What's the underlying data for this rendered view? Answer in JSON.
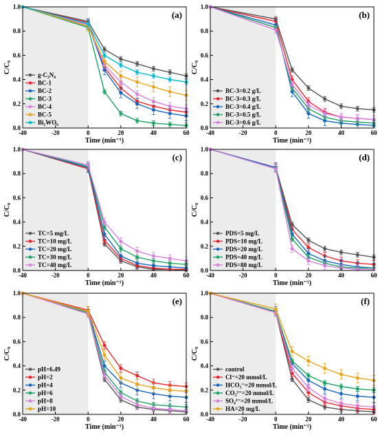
{
  "chart_data": [
    {
      "type": "line",
      "panel": "(a)",
      "xlabel": "Time (min⁻¹)",
      "ylabel": "C/C₀",
      "xlim": [
        -40,
        60
      ],
      "ylim": [
        0,
        1.0
      ],
      "xticks": [
        -40,
        -20,
        0,
        20,
        40,
        60
      ],
      "yticks": [
        0.0,
        0.2,
        0.4,
        0.6,
        0.8,
        1.0
      ],
      "dark_region": [
        -40,
        0
      ],
      "legend_position": "left",
      "x": [
        -40,
        0,
        10,
        20,
        30,
        40,
        50,
        60
      ],
      "series": [
        {
          "name": "g-C₃N₄",
          "color": "#555555",
          "marker": "circle",
          "values": [
            1.0,
            0.88,
            0.65,
            0.57,
            0.53,
            0.49,
            0.46,
            0.43
          ]
        },
        {
          "name": "BC-1",
          "color": "#e8242a",
          "marker": "circle",
          "values": [
            1.0,
            0.87,
            0.5,
            0.33,
            0.22,
            0.18,
            0.15,
            0.13
          ]
        },
        {
          "name": "BC-2",
          "color": "#1565c0",
          "marker": "circle",
          "values": [
            1.0,
            0.86,
            0.48,
            0.29,
            0.2,
            0.15,
            0.12,
            0.1
          ]
        },
        {
          "name": "BC-3",
          "color": "#1aa260",
          "marker": "circle",
          "values": [
            1.0,
            0.83,
            0.3,
            0.12,
            0.06,
            0.04,
            0.03,
            0.02
          ]
        },
        {
          "name": "BC-4",
          "color": "#d77fe0",
          "marker": "circle",
          "values": [
            1.0,
            0.85,
            0.52,
            0.38,
            0.28,
            0.22,
            0.18,
            0.16
          ]
        },
        {
          "name": "BC-5",
          "color": "#e8a317",
          "marker": "circle",
          "values": [
            1.0,
            0.84,
            0.55,
            0.43,
            0.38,
            0.34,
            0.3,
            0.27
          ]
        },
        {
          "name": "Bi₂WO₆",
          "color": "#00bcd4",
          "marker": "circle",
          "values": [
            1.0,
            0.86,
            0.6,
            0.52,
            0.46,
            0.43,
            0.4,
            0.38
          ]
        }
      ]
    },
    {
      "type": "line",
      "panel": "(b)",
      "xlabel": "Time (min⁻¹)",
      "ylabel": "C/C₀",
      "xlim": [
        -40,
        60
      ],
      "ylim": [
        0,
        1.0
      ],
      "xticks": [
        -40,
        -20,
        0,
        20,
        40,
        60
      ],
      "yticks": [
        0.0,
        0.2,
        0.4,
        0.6,
        0.8,
        1.0
      ],
      "dark_region": [
        -40,
        0
      ],
      "legend_position": "left",
      "x": [
        -40,
        0,
        10,
        20,
        30,
        40,
        50,
        60
      ],
      "series": [
        {
          "name": "BC-3=0.2 g/L",
          "color": "#555555",
          "marker": "circle",
          "values": [
            1.0,
            0.9,
            0.48,
            0.33,
            0.24,
            0.18,
            0.16,
            0.15
          ]
        },
        {
          "name": "BC-3=0.3 g/L",
          "color": "#e8242a",
          "marker": "circle",
          "values": [
            1.0,
            0.88,
            0.4,
            0.22,
            0.13,
            0.09,
            0.08,
            0.07
          ]
        },
        {
          "name": "BC-3=0.4 g/L",
          "color": "#1565c0",
          "marker": "circle",
          "values": [
            1.0,
            0.85,
            0.3,
            0.12,
            0.06,
            0.04,
            0.03,
            0.02
          ]
        },
        {
          "name": "BC-3=0.5 g/L",
          "color": "#1aa260",
          "marker": "circle",
          "values": [
            1.0,
            0.83,
            0.33,
            0.16,
            0.09,
            0.06,
            0.05,
            0.04
          ]
        },
        {
          "name": "BC-3=0.6 g/L",
          "color": "#d77fe0",
          "marker": "circle",
          "values": [
            1.0,
            0.81,
            0.36,
            0.19,
            0.12,
            0.09,
            0.08,
            0.07
          ]
        }
      ]
    },
    {
      "type": "line",
      "panel": "(c)",
      "xlabel": "Time (min⁻¹)",
      "ylabel": "C/C₀",
      "xlim": [
        -40,
        60
      ],
      "ylim": [
        0,
        1.0
      ],
      "xticks": [
        -40,
        -20,
        0,
        20,
        40,
        60
      ],
      "yticks": [
        0.0,
        0.2,
        0.4,
        0.6,
        0.8,
        1.0
      ],
      "dark_region": [
        -40,
        0
      ],
      "legend_position": "left",
      "x": [
        -40,
        0,
        10,
        20,
        30,
        40,
        50,
        60
      ],
      "series": [
        {
          "name": "TC=5 mg/L",
          "color": "#555555",
          "marker": "circle",
          "values": [
            1.0,
            0.84,
            0.22,
            0.08,
            0.03,
            0.01,
            0.01,
            0.0
          ]
        },
        {
          "name": "TC=10 mg/L",
          "color": "#e8242a",
          "marker": "circle",
          "values": [
            1.0,
            0.84,
            0.25,
            0.1,
            0.04,
            0.02,
            0.01,
            0.01
          ]
        },
        {
          "name": "TC=20 mg/L",
          "color": "#1565c0",
          "marker": "circle",
          "values": [
            1.0,
            0.85,
            0.3,
            0.12,
            0.06,
            0.04,
            0.03,
            0.02
          ]
        },
        {
          "name": "TC=30 mg/L",
          "color": "#1aa260",
          "marker": "circle",
          "values": [
            1.0,
            0.86,
            0.36,
            0.18,
            0.11,
            0.08,
            0.06,
            0.05
          ]
        },
        {
          "name": "TC=40 mg/L",
          "color": "#d77fe0",
          "marker": "circle",
          "values": [
            1.0,
            0.87,
            0.4,
            0.24,
            0.16,
            0.12,
            0.1,
            0.08
          ]
        }
      ]
    },
    {
      "type": "line",
      "panel": "(d)",
      "xlabel": "Time (min⁻¹)",
      "ylabel": "C/C₀",
      "xlim": [
        -40,
        60
      ],
      "ylim": [
        0,
        1.0
      ],
      "xticks": [
        -40,
        -20,
        0,
        20,
        40,
        60
      ],
      "yticks": [
        0.0,
        0.2,
        0.4,
        0.6,
        0.8,
        1.0
      ],
      "dark_region": [
        -40,
        0
      ],
      "legend_position": "left",
      "x": [
        -40,
        0,
        10,
        20,
        30,
        40,
        50,
        60
      ],
      "series": [
        {
          "name": "PDS=5 mg/L",
          "color": "#555555",
          "marker": "circle",
          "values": [
            1.0,
            0.85,
            0.38,
            0.25,
            0.18,
            0.15,
            0.13,
            0.11
          ]
        },
        {
          "name": "PDS=10 mg/L",
          "color": "#e8242a",
          "marker": "circle",
          "values": [
            1.0,
            0.85,
            0.34,
            0.19,
            0.12,
            0.08,
            0.06,
            0.05
          ]
        },
        {
          "name": "PDS=20 mg/L",
          "color": "#1565c0",
          "marker": "circle",
          "values": [
            1.0,
            0.85,
            0.3,
            0.14,
            0.08,
            0.05,
            0.03,
            0.02
          ]
        },
        {
          "name": "PDS=40 mg/L",
          "color": "#1aa260",
          "marker": "circle",
          "values": [
            1.0,
            0.84,
            0.26,
            0.11,
            0.06,
            0.03,
            0.02,
            0.02
          ]
        },
        {
          "name": "PDS=80 mg/L",
          "color": "#d77fe0",
          "marker": "circle",
          "values": [
            1.0,
            0.84,
            0.18,
            0.08,
            0.04,
            0.02,
            0.01,
            0.01
          ]
        }
      ]
    },
    {
      "type": "line",
      "panel": "(e)",
      "xlabel": "Time (min⁻¹)",
      "ylabel": "C/C₀",
      "xlim": [
        -40,
        60
      ],
      "ylim": [
        0,
        1.0
      ],
      "xticks": [
        -40,
        -20,
        0,
        20,
        40,
        60
      ],
      "yticks": [
        0.0,
        0.2,
        0.4,
        0.6,
        0.8,
        1.0
      ],
      "dark_region": [
        -40,
        0
      ],
      "legend_position": "left",
      "x": [
        -40,
        0,
        10,
        20,
        30,
        40,
        50,
        60
      ],
      "series": [
        {
          "name": "pH=6.49",
          "color": "#555555",
          "marker": "circle",
          "values": [
            1.0,
            0.83,
            0.29,
            0.12,
            0.06,
            0.04,
            0.03,
            0.02
          ]
        },
        {
          "name": "pH=2",
          "color": "#e8242a",
          "marker": "circle",
          "values": [
            1.0,
            0.86,
            0.57,
            0.38,
            0.32,
            0.26,
            0.24,
            0.23
          ]
        },
        {
          "name": "pH=4",
          "color": "#1565c0",
          "marker": "circle",
          "values": [
            1.0,
            0.85,
            0.4,
            0.26,
            0.2,
            0.17,
            0.15,
            0.14
          ]
        },
        {
          "name": "pH=6",
          "color": "#1aa260",
          "marker": "circle",
          "values": [
            1.0,
            0.84,
            0.35,
            0.18,
            0.11,
            0.08,
            0.07,
            0.06
          ]
        },
        {
          "name": "pH=8",
          "color": "#d77fe0",
          "marker": "circle",
          "values": [
            1.0,
            0.83,
            0.32,
            0.15,
            0.08,
            0.05,
            0.04,
            0.03
          ]
        },
        {
          "name": "pH=10",
          "color": "#e8a317",
          "marker": "circle",
          "values": [
            1.0,
            0.85,
            0.49,
            0.3,
            0.25,
            0.22,
            0.2,
            0.19
          ]
        }
      ]
    },
    {
      "type": "line",
      "panel": "(f)",
      "xlabel": "Time (min⁻¹)",
      "ylabel": "C/C₀",
      "xlim": [
        -40,
        60
      ],
      "ylim": [
        0,
        1.0
      ],
      "xticks": [
        -40,
        -20,
        0,
        20,
        40,
        60
      ],
      "yticks": [
        0.0,
        0.2,
        0.4,
        0.6,
        0.8,
        1.0
      ],
      "dark_region": [
        -40,
        0
      ],
      "legend_position": "left",
      "x": [
        -40,
        0,
        10,
        20,
        30,
        40,
        50,
        60
      ],
      "series": [
        {
          "name": "control",
          "color": "#555555",
          "marker": "circle",
          "values": [
            1.0,
            0.84,
            0.29,
            0.12,
            0.06,
            0.04,
            0.03,
            0.02
          ]
        },
        {
          "name": "Cl⁻=20 mmol/L",
          "color": "#e8242a",
          "marker": "circle",
          "values": [
            1.0,
            0.84,
            0.34,
            0.18,
            0.1,
            0.07,
            0.05,
            0.04
          ]
        },
        {
          "name": "HCO₃⁻=20 mmol/L",
          "color": "#1565c0",
          "marker": "circle",
          "values": [
            1.0,
            0.85,
            0.42,
            0.28,
            0.21,
            0.17,
            0.15,
            0.14
          ]
        },
        {
          "name": "CO₃²⁻=20 mmol/L",
          "color": "#1aa260",
          "marker": "circle",
          "values": [
            1.0,
            0.85,
            0.44,
            0.32,
            0.26,
            0.23,
            0.21,
            0.2
          ]
        },
        {
          "name": "SO₄²⁻=20 mmol/L",
          "color": "#d77fe0",
          "marker": "circle",
          "values": [
            1.0,
            0.84,
            0.38,
            0.22,
            0.13,
            0.09,
            0.07,
            0.06
          ]
        },
        {
          "name": "HA=20 mg/L",
          "color": "#e8a317",
          "marker": "circle",
          "values": [
            1.0,
            0.87,
            0.52,
            0.44,
            0.38,
            0.33,
            0.3,
            0.28
          ]
        }
      ]
    }
  ]
}
